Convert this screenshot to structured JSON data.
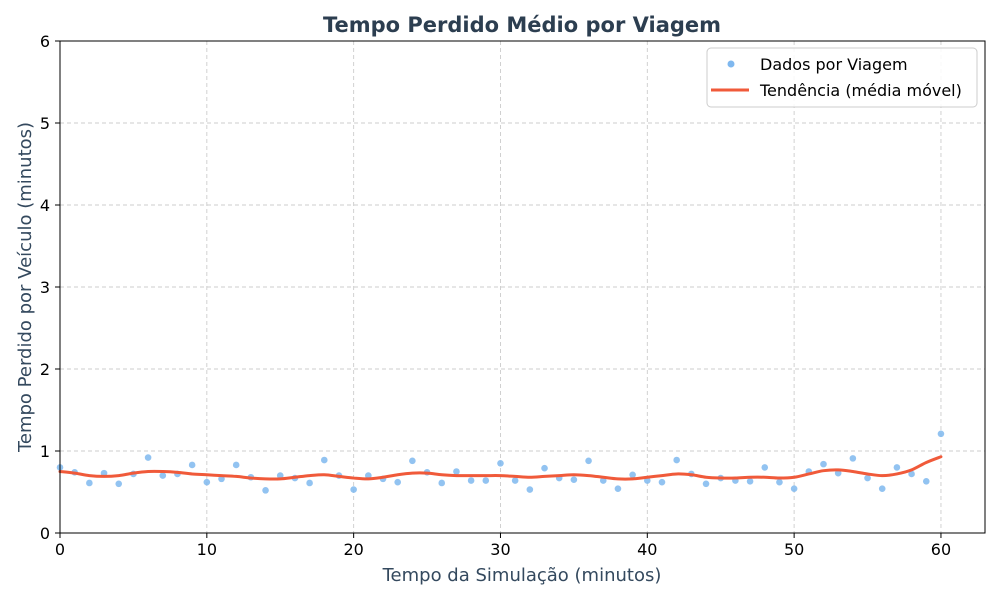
{
  "chart_data": {
    "type": "line",
    "title": "Tempo Perdido Médio por Viagem",
    "xlabel": "Tempo da Simulação (minutos)",
    "ylabel": "Tempo Perdido por Veículo (minutos)",
    "xlim": [
      0,
      63
    ],
    "ylim": [
      0,
      6
    ],
    "xticks": [
      0,
      10,
      20,
      30,
      40,
      50,
      60
    ],
    "yticks": [
      0,
      1,
      2,
      3,
      4,
      5,
      6
    ],
    "grid": true,
    "legend_position": "top-right",
    "colors": {
      "scatter": "#7fb8ef",
      "trend": "#f05a3a",
      "title": "#2c3e50",
      "axis_label": "#34495e"
    },
    "series": [
      {
        "name": "Dados por Viagem",
        "kind": "scatter",
        "x": [
          0,
          1,
          2,
          3,
          4,
          5,
          6,
          7,
          8,
          9,
          10,
          11,
          12,
          13,
          14,
          15,
          16,
          17,
          18,
          19,
          20,
          21,
          22,
          23,
          24,
          25,
          26,
          27,
          28,
          29,
          30,
          31,
          32,
          33,
          34,
          35,
          36,
          37,
          38,
          39,
          40,
          41,
          42,
          43,
          44,
          45,
          46,
          47,
          48,
          49,
          50,
          51,
          52,
          53,
          54,
          55,
          56,
          57,
          58,
          59,
          60
        ],
        "y": [
          0.8,
          0.74,
          0.61,
          0.73,
          0.6,
          0.72,
          0.92,
          0.7,
          0.72,
          0.83,
          0.62,
          0.66,
          0.83,
          0.68,
          0.52,
          0.7,
          0.67,
          0.61,
          0.89,
          0.7,
          0.53,
          0.7,
          0.66,
          0.62,
          0.88,
          0.74,
          0.61,
          0.75,
          0.64,
          0.64,
          0.85,
          0.64,
          0.53,
          0.79,
          0.67,
          0.65,
          0.88,
          0.64,
          0.54,
          0.71,
          0.64,
          0.62,
          0.89,
          0.72,
          0.6,
          0.67,
          0.64,
          0.63,
          0.8,
          0.62,
          0.54,
          0.75,
          0.84,
          0.73,
          0.91,
          0.67,
          0.54,
          0.8,
          0.72,
          0.63,
          1.21
        ]
      },
      {
        "name": "Tendência (média móvel)",
        "kind": "line",
        "x": [
          0,
          1,
          2,
          3,
          4,
          5,
          6,
          7,
          8,
          9,
          10,
          11,
          12,
          13,
          14,
          15,
          16,
          17,
          18,
          19,
          20,
          21,
          22,
          23,
          24,
          25,
          26,
          27,
          28,
          29,
          30,
          31,
          32,
          33,
          34,
          35,
          36,
          37,
          38,
          39,
          40,
          41,
          42,
          43,
          44,
          45,
          46,
          47,
          48,
          49,
          50,
          51,
          52,
          53,
          54,
          55,
          56,
          57,
          58,
          59,
          60
        ],
        "y": [
          0.75,
          0.73,
          0.7,
          0.69,
          0.7,
          0.73,
          0.75,
          0.75,
          0.74,
          0.72,
          0.71,
          0.7,
          0.69,
          0.67,
          0.66,
          0.66,
          0.68,
          0.7,
          0.71,
          0.69,
          0.67,
          0.66,
          0.68,
          0.71,
          0.73,
          0.73,
          0.71,
          0.7,
          0.7,
          0.7,
          0.7,
          0.69,
          0.68,
          0.69,
          0.7,
          0.71,
          0.7,
          0.68,
          0.66,
          0.66,
          0.68,
          0.7,
          0.72,
          0.71,
          0.68,
          0.67,
          0.67,
          0.68,
          0.68,
          0.67,
          0.68,
          0.72,
          0.76,
          0.77,
          0.75,
          0.72,
          0.7,
          0.72,
          0.77,
          0.86,
          0.93
        ]
      }
    ]
  }
}
